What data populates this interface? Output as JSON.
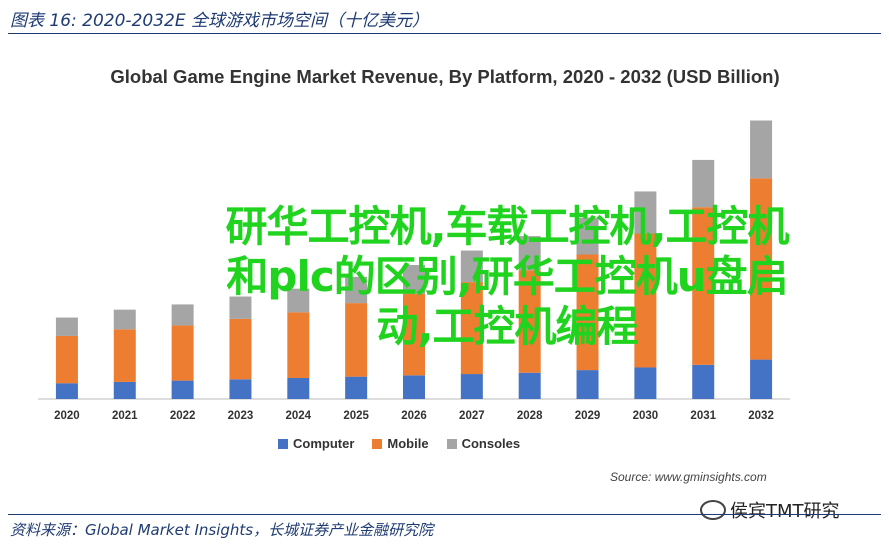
{
  "header": {
    "caption": "图表 16:  2020-2032E 全球游戏市场空间（十亿美元）"
  },
  "chart_data": {
    "type": "bar",
    "stacked": true,
    "title": "Global Game Engine Market Revenue, By Platform, 2020 - 2032 (USD Billion)",
    "categories": [
      "2020",
      "2021",
      "2022",
      "2023",
      "2024",
      "2025",
      "2026",
      "2027",
      "2028",
      "2029",
      "2030",
      "2031",
      "2032"
    ],
    "series": [
      {
        "name": "Computer",
        "color": "#4472c4",
        "values": [
          0.6,
          0.65,
          0.7,
          0.75,
          0.8,
          0.85,
          0.9,
          0.95,
          1.0,
          1.1,
          1.2,
          1.3,
          1.5
        ]
      },
      {
        "name": "Mobile",
        "color": "#ed7d31",
        "values": [
          1.8,
          2.0,
          2.1,
          2.3,
          2.5,
          2.8,
          3.1,
          3.5,
          3.9,
          4.4,
          5.1,
          6.0,
          6.9
        ]
      },
      {
        "name": "Consoles",
        "color": "#a5a5a5",
        "values": [
          0.7,
          0.75,
          0.8,
          0.85,
          0.9,
          1.0,
          1.1,
          1.2,
          1.3,
          1.4,
          1.6,
          1.8,
          2.2
        ]
      }
    ],
    "ylim": [
      0,
      11
    ],
    "grid": false,
    "legend_position": "bottom"
  },
  "source": "Source: www.gminsights.com",
  "overlay_text": "研华工控机,车载工控机,工控机和plc的区别,研华工控机u盘启动,工控机编程",
  "watermark": "侯宾TMT研究",
  "footnote": "资料来源：Global Market Insights，长城证券产业金融研究院"
}
